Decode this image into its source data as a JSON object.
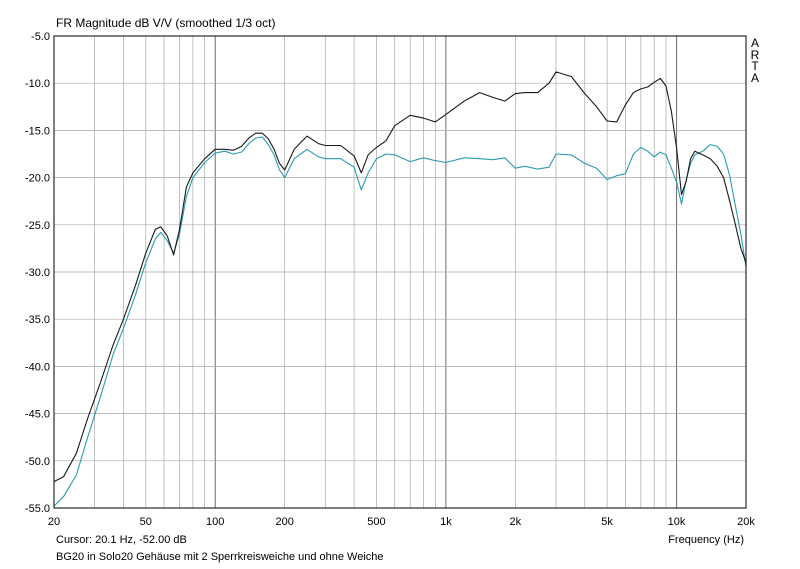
{
  "chart_data": {
    "type": "line",
    "title": "FR Magnitude dB V/V (smoothed 1/3 oct)",
    "xlabel": "Frequency (Hz)",
    "ylabel": "",
    "x_scale": "log",
    "xlim": [
      20,
      20000
    ],
    "ylim": [
      -55,
      -5
    ],
    "grid": true,
    "x_ticks": [
      {
        "value": 20,
        "label": "20"
      },
      {
        "value": 50,
        "label": "50"
      },
      {
        "value": 100,
        "label": "100"
      },
      {
        "value": 200,
        "label": "200"
      },
      {
        "value": 500,
        "label": "500"
      },
      {
        "value": 1000,
        "label": "1k"
      },
      {
        "value": 2000,
        "label": "2k"
      },
      {
        "value": 5000,
        "label": "5k"
      },
      {
        "value": 10000,
        "label": "10k"
      },
      {
        "value": 20000,
        "label": "20k"
      }
    ],
    "y_ticks": [
      {
        "value": -5,
        "label": "-5.0"
      },
      {
        "value": -10,
        "label": "-10.0"
      },
      {
        "value": -15,
        "label": "-15.0"
      },
      {
        "value": -20,
        "label": "-20.0"
      },
      {
        "value": -25,
        "label": "-25.0"
      },
      {
        "value": -30,
        "label": "-30.0"
      },
      {
        "value": -35,
        "label": "-35.0"
      },
      {
        "value": -40,
        "label": "-40.0"
      },
      {
        "value": -45,
        "label": "-45.0"
      },
      {
        "value": -50,
        "label": "-50.0"
      },
      {
        "value": -55,
        "label": "-55.0"
      }
    ],
    "series": [
      {
        "color": "#1a1a1a",
        "x": [
          20,
          22,
          25,
          28,
          32,
          36,
          40,
          45,
          50,
          55,
          58,
          62,
          66,
          70,
          75,
          80,
          90,
          100,
          110,
          120,
          130,
          140,
          150,
          160,
          170,
          180,
          190,
          200,
          220,
          250,
          280,
          300,
          350,
          400,
          430,
          460,
          500,
          550,
          600,
          700,
          800,
          900,
          1000,
          1200,
          1400,
          1600,
          1800,
          2000,
          2200,
          2500,
          2800,
          3000,
          3500,
          4000,
          4500,
          5000,
          5500,
          6000,
          6500,
          7000,
          7500,
          8000,
          8500,
          9000,
          9500,
          10000,
          10500,
          11000,
          11500,
          12000,
          13000,
          14000,
          15000,
          16000,
          17000,
          18000,
          19000,
          20000
        ],
        "y": [
          -52.2,
          -51.7,
          -49.2,
          -45.5,
          -41.5,
          -37.8,
          -35.0,
          -31.5,
          -28.0,
          -25.5,
          -25.2,
          -26.2,
          -28.2,
          -25.5,
          -21.0,
          -19.5,
          -18.0,
          -17.0,
          -17.0,
          -17.1,
          -16.7,
          -15.8,
          -15.3,
          -15.3,
          -15.9,
          -17.0,
          -18.5,
          -19.2,
          -17.0,
          -15.6,
          -16.4,
          -16.6,
          -16.6,
          -17.7,
          -19.5,
          -17.6,
          -16.8,
          -16.1,
          -14.5,
          -13.4,
          -13.7,
          -14.1,
          -13.3,
          -11.9,
          -11.0,
          -11.5,
          -11.9,
          -11.1,
          -11.0,
          -11.0,
          -10.0,
          -8.8,
          -9.3,
          -11.1,
          -12.5,
          -14.0,
          -14.1,
          -12.3,
          -11.0,
          -10.6,
          -10.4,
          -9.9,
          -9.5,
          -10.3,
          -13.0,
          -16.9,
          -21.8,
          -20.4,
          -18.0,
          -17.2,
          -17.6,
          -18.0,
          -18.8,
          -20.0,
          -22.5,
          -25.0,
          -27.5,
          -29.0
        ]
      },
      {
        "color": "#2a9bb0",
        "x": [
          20,
          22,
          25,
          28,
          32,
          36,
          40,
          45,
          50,
          55,
          58,
          62,
          66,
          70,
          75,
          80,
          90,
          100,
          110,
          120,
          130,
          140,
          150,
          160,
          170,
          180,
          190,
          200,
          220,
          250,
          280,
          300,
          350,
          400,
          430,
          460,
          500,
          550,
          600,
          700,
          800,
          900,
          1000,
          1200,
          1400,
          1600,
          1800,
          2000,
          2200,
          2500,
          2800,
          3000,
          3500,
          4000,
          4500,
          5000,
          5500,
          6000,
          6500,
          7000,
          7500,
          8000,
          8500,
          9000,
          9500,
          10000,
          10500,
          11000,
          11500,
          12000,
          13000,
          14000,
          15000,
          16000,
          17000,
          18000,
          19000,
          20000
        ],
        "y": [
          -54.8,
          -53.8,
          -51.5,
          -47.5,
          -43.0,
          -38.8,
          -36.0,
          -32.5,
          -29.0,
          -26.5,
          -25.8,
          -26.7,
          -28.0,
          -26.0,
          -22.0,
          -20.0,
          -18.4,
          -17.4,
          -17.2,
          -17.5,
          -17.3,
          -16.4,
          -15.8,
          -15.7,
          -16.5,
          -17.6,
          -19.2,
          -20.0,
          -18.0,
          -17.0,
          -17.8,
          -18.0,
          -18.0,
          -18.9,
          -21.3,
          -19.5,
          -18.0,
          -17.5,
          -17.6,
          -18.3,
          -17.9,
          -18.2,
          -18.4,
          -17.9,
          -18.0,
          -18.1,
          -17.9,
          -19.0,
          -18.8,
          -19.1,
          -18.9,
          -17.5,
          -17.6,
          -18.5,
          -19.0,
          -20.2,
          -19.8,
          -19.6,
          -17.5,
          -16.8,
          -17.2,
          -17.8,
          -17.3,
          -17.6,
          -19.0,
          -20.5,
          -22.8,
          -20.3,
          -18.5,
          -17.6,
          -17.2,
          -16.5,
          -16.7,
          -17.5,
          -19.8,
          -23.0,
          -26.0,
          -29.5
        ]
      }
    ]
  },
  "watermark": {
    "letters": [
      "A",
      "R",
      "T",
      "A"
    ]
  },
  "cursor_readout": "Cursor: 20.1 Hz, -52.00 dB",
  "caption": "BG20 in Solo20 Gehäuse mit 2 Sperrkreisweiche und ohne Weiche",
  "colors": {
    "grid": "#a8a8a8",
    "axis": "#000000"
  }
}
